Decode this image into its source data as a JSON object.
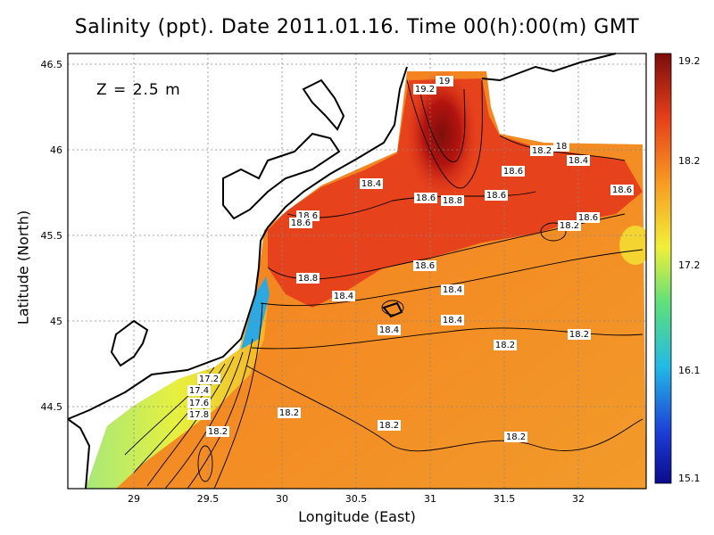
{
  "title": "Salinity (ppt). Date 2011.01.16. Time 00(h):00(m) GMT",
  "depth_label": "Z  =  2.5  m",
  "x_axis": {
    "label": "Longitude (East)",
    "ticks": [
      "29",
      "29.5",
      "30",
      "30.5",
      "31",
      "31.5",
      "32"
    ]
  },
  "y_axis": {
    "label": "Latitude (North)",
    "ticks": [
      "44.5",
      "45",
      "45.5",
      "46",
      "46.5"
    ]
  },
  "colorbar": {
    "ticks": [
      "19.2",
      "18.2",
      "17.2",
      "16.1",
      "15.1"
    ],
    "min": 15.1,
    "max": 19.2
  },
  "contour_labels": [
    "19",
    "19.2",
    "18.2",
    "18",
    "18.4",
    "18.6",
    "18.6",
    "18.6",
    "18.8",
    "18.6",
    "18.4",
    "18.2",
    "18.6",
    "18.6",
    "18.6",
    "18.8",
    "18.6",
    "18.4",
    "18.4",
    "18.4",
    "18.4",
    "18.2",
    "18.2",
    "17.2",
    "17.4",
    "17.6",
    "17.8",
    "18.2",
    "18.2",
    "18.2",
    "18.2"
  ]
}
